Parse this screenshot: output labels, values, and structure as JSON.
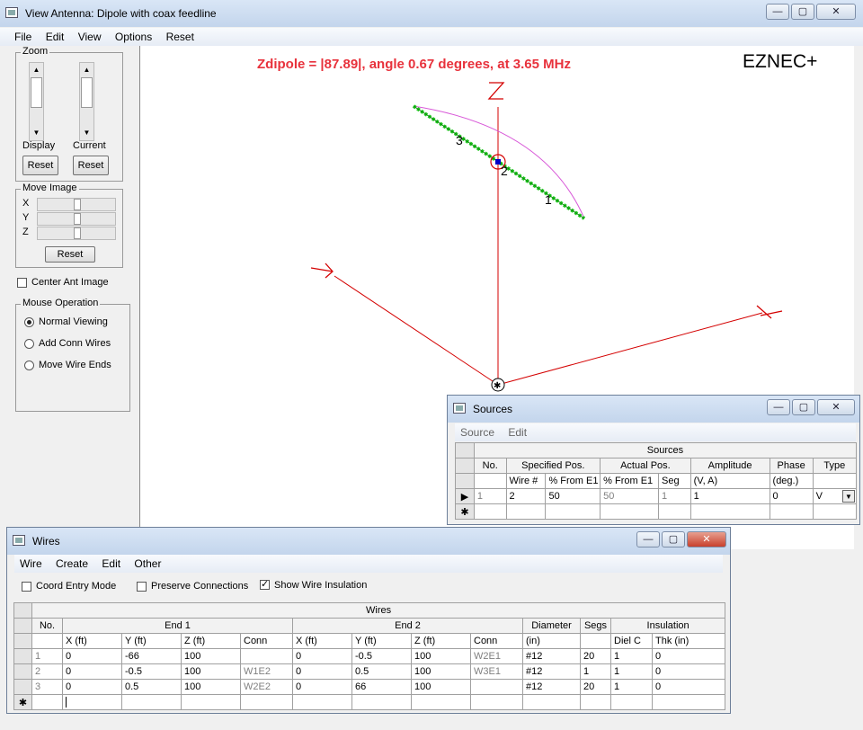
{
  "main_window": {
    "title": "View Antenna: Dipole with coax feedline",
    "menu": [
      "File",
      "Edit",
      "View",
      "Options",
      "Reset"
    ],
    "zoom": {
      "caption": "Zoom",
      "display_label": "Display",
      "current_label": "Current",
      "reset_label": "Reset"
    },
    "move_image": {
      "caption": "Move Image",
      "axes": [
        "X",
        "Y",
        "Z"
      ],
      "reset_label": "Reset"
    },
    "center_ant_image": {
      "label": "Center Ant Image",
      "checked": false
    },
    "mouse_operation": {
      "caption": "Mouse Operation",
      "options": [
        "Normal Viewing",
        "Add Conn Wires",
        "Move Wire Ends"
      ],
      "selected": 0
    },
    "canvas": {
      "impedance_text": "Zdipole = |87.89|, angle 0.67 degrees, at 3.65 MHz",
      "brand": "EZNEC+",
      "axis_z": "Z",
      "wire_labels": [
        "1",
        "2",
        "3"
      ],
      "colors": {
        "axis": "#d40000",
        "wire": "#1ec81e",
        "pattern": "#d858d8",
        "source": "#0000c8",
        "impedance": "#e8323c"
      }
    }
  },
  "sources_window": {
    "title": "Sources",
    "menu": [
      "Source",
      "Edit"
    ],
    "group_header": "Sources",
    "columns": [
      {
        "top": "No.",
        "bottom": ""
      },
      {
        "top": "Specified Pos.",
        "bottom": "Wire #"
      },
      {
        "top": "",
        "bottom": "% From E1"
      },
      {
        "top": "Actual Pos.",
        "bottom": "% From E1"
      },
      {
        "top": "",
        "bottom": "Seg"
      },
      {
        "top": "Amplitude",
        "bottom": "(V, A)"
      },
      {
        "top": "Phase",
        "bottom": "(deg.)"
      },
      {
        "top": "Type",
        "bottom": ""
      }
    ],
    "rows": [
      {
        "no": "1",
        "wire": "2",
        "pct": "50",
        "actual_pct": "50",
        "seg": "1",
        "amp": "1",
        "phase": "0",
        "type": "V"
      }
    ]
  },
  "wires_window": {
    "title": "Wires",
    "menu": [
      "Wire",
      "Create",
      "Edit",
      "Other"
    ],
    "options": [
      {
        "label": "Coord Entry Mode",
        "checked": false
      },
      {
        "label": "Preserve Connections",
        "checked": false
      },
      {
        "label": "Show Wire Insulation",
        "checked": true
      }
    ],
    "group_header": "Wires",
    "groups": [
      "No.",
      "End 1",
      "End 2",
      "Diameter",
      "Segs",
      "Insulation"
    ],
    "subheaders": [
      "X (ft)",
      "Y (ft)",
      "Z (ft)",
      "Conn",
      "X (ft)",
      "Y (ft)",
      "Z (ft)",
      "Conn",
      "(in)",
      "",
      "Diel C",
      "Thk (in)"
    ],
    "rows": [
      {
        "no": "1",
        "x1": "0",
        "y1": "-66",
        "z1": "100",
        "c1": "",
        "x2": "0",
        "y2": "-0.5",
        "z2": "100",
        "c2": "W2E1",
        "dia": "#12",
        "segs": "20",
        "diel": "1",
        "thk": "0"
      },
      {
        "no": "2",
        "x1": "0",
        "y1": "-0.5",
        "z1": "100",
        "c1": "W1E2",
        "x2": "0",
        "y2": "0.5",
        "z2": "100",
        "c2": "W3E1",
        "dia": "#12",
        "segs": "1",
        "diel": "1",
        "thk": "0"
      },
      {
        "no": "3",
        "x1": "0",
        "y1": "0.5",
        "z1": "100",
        "c1": "W2E2",
        "x2": "0",
        "y2": "66",
        "z2": "100",
        "c2": "",
        "dia": "#12",
        "segs": "20",
        "diel": "1",
        "thk": "0"
      }
    ]
  }
}
